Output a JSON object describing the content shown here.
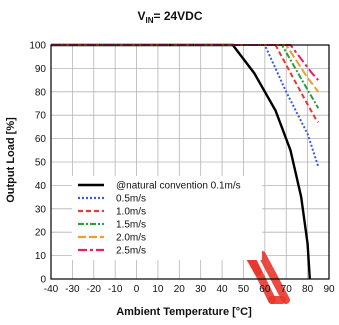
{
  "chart_data": {
    "type": "line",
    "title_main": "V",
    "title_sub": "IN",
    "title_rest": "= 24VDC",
    "xlabel": "Ambient Temperature [°C]",
    "ylabel": "Output Load [%]",
    "xlim": [
      -40,
      90
    ],
    "ylim": [
      0,
      100
    ],
    "xticks": [
      "-40",
      "-30",
      "-20",
      "-10",
      "0",
      "10",
      "20",
      "30",
      "40",
      "50",
      "60",
      "70",
      "80",
      "90"
    ],
    "xtick_values": [
      -40,
      -30,
      -20,
      -10,
      0,
      10,
      20,
      30,
      40,
      50,
      60,
      70,
      80,
      90
    ],
    "yticks": [
      "0",
      "10",
      "20",
      "30",
      "40",
      "50",
      "60",
      "70",
      "80",
      "90",
      "100"
    ],
    "ytick_values": [
      0,
      10,
      20,
      30,
      40,
      50,
      60,
      70,
      80,
      90,
      100
    ],
    "grid": true,
    "legend_position": "bottom-left",
    "series": [
      {
        "name": "@natural convention 0.1m/s",
        "color": "#000000",
        "dash": "solid",
        "points": [
          [
            -40,
            100
          ],
          [
            45,
            100
          ],
          [
            55,
            88
          ],
          [
            65,
            72
          ],
          [
            72,
            55
          ],
          [
            77,
            35
          ],
          [
            80,
            15
          ],
          [
            81,
            0
          ]
        ]
      },
      {
        "name": "0.5m/s",
        "color": "#3a5bd9",
        "dash": "dotted",
        "points": [
          [
            -40,
            100
          ],
          [
            60,
            100
          ],
          [
            70,
            80
          ],
          [
            80,
            62
          ],
          [
            85,
            48
          ]
        ]
      },
      {
        "name": "1.0m/s",
        "color": "#e53935",
        "dash": "dashed",
        "points": [
          [
            -40,
            100
          ],
          [
            65,
            100
          ],
          [
            75,
            83
          ],
          [
            84,
            68
          ],
          [
            85,
            67
          ]
        ]
      },
      {
        "name": "1.5m/s",
        "color": "#2e9e3e",
        "dash": "dashdot",
        "points": [
          [
            -40,
            100
          ],
          [
            68,
            100
          ],
          [
            78,
            84
          ],
          [
            85,
            73
          ]
        ]
      },
      {
        "name": "2.0m/s",
        "color": "#f39c2a",
        "dash": "longdash",
        "points": [
          [
            -40,
            100
          ],
          [
            70,
            100
          ],
          [
            80,
            86
          ],
          [
            85,
            80
          ]
        ]
      },
      {
        "name": "2.5m/s",
        "color": "#e91e63",
        "dash": "dashed-long",
        "points": [
          [
            -40,
            100
          ],
          [
            72,
            100
          ],
          [
            82,
            88
          ],
          [
            85,
            85
          ]
        ]
      }
    ]
  },
  "watermark_colors": [
    "#e8372c"
  ]
}
